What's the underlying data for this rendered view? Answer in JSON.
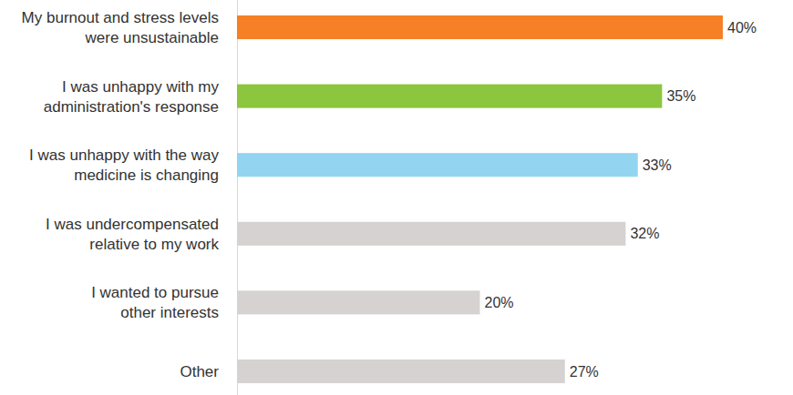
{
  "chart_data": {
    "type": "bar",
    "orientation": "horizontal",
    "categories": [
      "My burnout and stress levels\nwere unsustainable",
      "I was unhappy with my\nadministration's response",
      "I was unhappy with the way\nmedicine is changing",
      "I was undercompensated\nrelative to my work",
      "I wanted to pursue\nother interests",
      "Other"
    ],
    "values": [
      40,
      35,
      33,
      32,
      20,
      27
    ],
    "value_labels": [
      "40%",
      "35%",
      "33%",
      "32%",
      "20%",
      "27%"
    ],
    "colors": [
      "#f58025",
      "#8cc63f",
      "#93d5f0",
      "#d6d2d2",
      "#d6d2d2",
      "#d6d2d2"
    ],
    "data_labels": true,
    "tick_labels": "y",
    "grid": false
  }
}
